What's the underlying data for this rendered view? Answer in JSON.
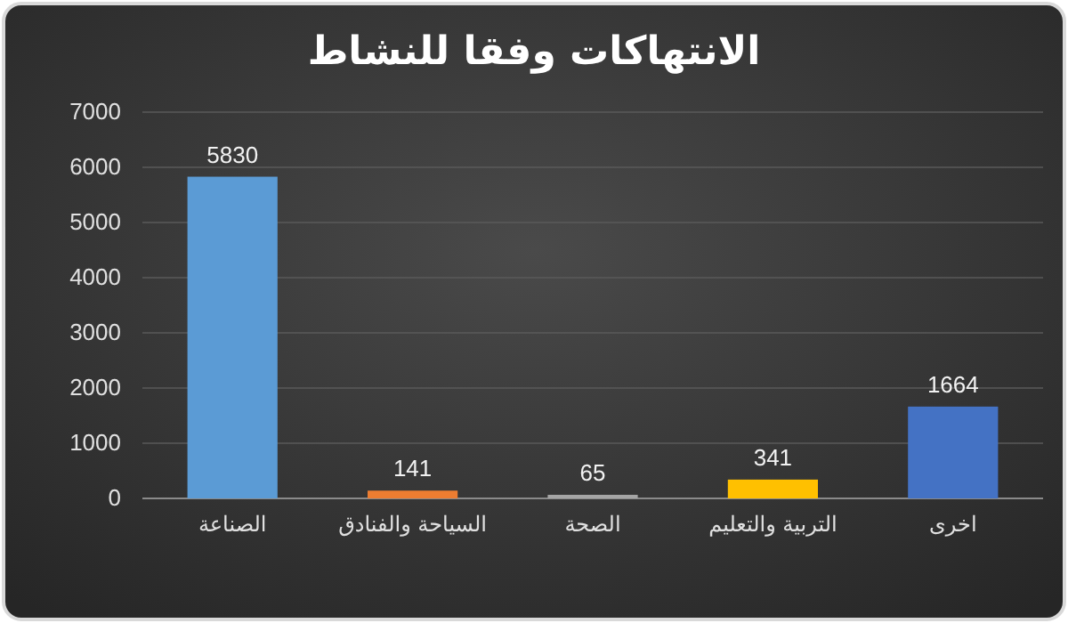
{
  "chart_data": {
    "type": "bar",
    "title": "الانتهاكات وفقا للنشاط",
    "categories": [
      "الصناعة",
      "السياحة والفنادق",
      "الصحة",
      "التربية والتعليم",
      "اخرى"
    ],
    "values": [
      5830,
      141,
      65,
      341,
      1664
    ],
    "colors": [
      "#5b9bd5",
      "#ed7d31",
      "#a5a5a5",
      "#ffc000",
      "#4472c4"
    ],
    "ylim": [
      0,
      7000
    ],
    "yticks": [
      0,
      1000,
      2000,
      3000,
      4000,
      5000,
      6000,
      7000
    ],
    "grid": "y",
    "data_labels": true
  }
}
